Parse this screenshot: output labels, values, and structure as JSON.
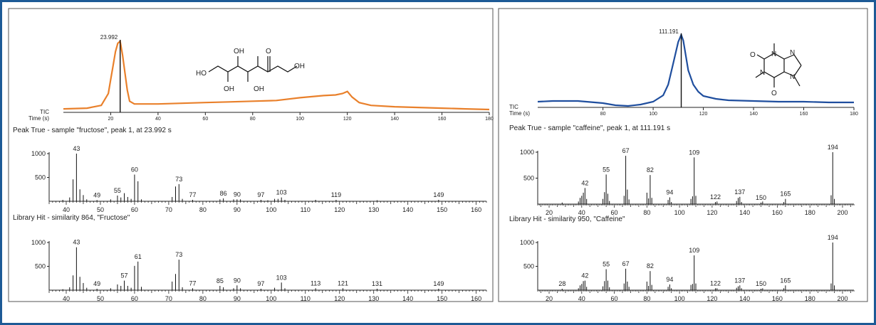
{
  "chart_data": [
    {
      "type": "line",
      "panel": "left-chromatogram",
      "peak_label": "23.992",
      "trace_label": "TIC",
      "xlabel": "Time (s)",
      "xlim": [
        0,
        180
      ],
      "xticks": [
        20,
        40,
        60,
        80,
        100,
        120,
        140,
        160,
        180
      ],
      "peak_x": 23.992,
      "x": [
        0,
        10,
        16,
        19,
        20,
        21,
        22,
        23,
        23.99,
        25,
        26,
        27,
        28,
        30,
        40,
        50,
        60,
        70,
        80,
        90,
        100,
        110,
        115,
        118,
        120,
        122,
        125,
        130,
        140,
        150,
        160,
        170,
        180
      ],
      "y": [
        0.03,
        0.04,
        0.08,
        0.25,
        0.45,
        0.65,
        0.85,
        0.97,
        1.0,
        0.8,
        0.55,
        0.3,
        0.14,
        0.1,
        0.1,
        0.11,
        0.12,
        0.13,
        0.14,
        0.15,
        0.19,
        0.22,
        0.23,
        0.25,
        0.28,
        0.2,
        0.12,
        0.08,
        0.06,
        0.05,
        0.04,
        0.03,
        0.02
      ],
      "color": "#e9802b",
      "structure_name": "fructose",
      "structure_labels": [
        "HO",
        "OH",
        "OH",
        "OH",
        "OH"
      ],
      "structure_o": "O"
    },
    {
      "type": "line",
      "panel": "right-chromatogram",
      "peak_label": "111.191",
      "trace_label": "TIC",
      "xlabel": "Time (s)",
      "xlim": [
        54,
        180
      ],
      "xticks": [
        80,
        100,
        120,
        140,
        160,
        180
      ],
      "peak_x": 111.191,
      "x": [
        54,
        60,
        70,
        80,
        85,
        90,
        95,
        100,
        104,
        106,
        108,
        110,
        111.19,
        112,
        114,
        116,
        118,
        120,
        125,
        130,
        140,
        150,
        160,
        170,
        180
      ],
      "y": [
        0.06,
        0.07,
        0.07,
        0.04,
        0.01,
        0.0,
        0.02,
        0.06,
        0.15,
        0.3,
        0.6,
        0.9,
        1.0,
        0.92,
        0.5,
        0.3,
        0.2,
        0.14,
        0.1,
        0.08,
        0.07,
        0.06,
        0.06,
        0.05,
        0.05
      ],
      "color": "#1f4e9e",
      "structure_name": "caffeine",
      "structure_o": [
        "O",
        "O"
      ],
      "structure_n": [
        "N",
        "N",
        "N",
        "N"
      ]
    },
    {
      "type": "bar",
      "panel": "left-sample-spectrum",
      "title": "Peak True - sample \"fructose\", peak 1, at 23.992 s",
      "xlim": [
        35,
        163
      ],
      "ylim": [
        0,
        1000
      ],
      "yticks": [
        500,
        1000
      ],
      "xticks": [
        40,
        50,
        60,
        70,
        80,
        90,
        100,
        110,
        120,
        130,
        140,
        150,
        160
      ],
      "x": [
        39,
        41,
        42,
        43,
        44,
        45,
        46,
        49,
        53,
        55,
        56,
        57,
        58,
        59,
        60,
        61,
        62,
        71,
        72,
        73,
        74,
        77,
        85,
        86,
        89,
        90,
        91,
        97,
        99,
        101,
        102,
        103,
        104,
        113,
        119,
        131,
        149
      ],
      "y": [
        30,
        80,
        460,
        1000,
        250,
        130,
        40,
        25,
        40,
        120,
        80,
        170,
        90,
        50,
        560,
        420,
        40,
        90,
        310,
        360,
        50,
        30,
        40,
        60,
        40,
        40,
        40,
        30,
        20,
        50,
        50,
        80,
        30,
        30,
        30,
        20,
        30
      ],
      "labels": {
        "43": "43",
        "49": "49",
        "55": "55",
        "60": "60",
        "73": "73",
        "77": "77",
        "86": "86",
        "90": "90",
        "97": "97",
        "103": "103",
        "119": "119",
        "149": "149"
      }
    },
    {
      "type": "bar",
      "panel": "left-library-spectrum",
      "title": "Library Hit - similarity 864, \"Fructose\"",
      "xlim": [
        35,
        163
      ],
      "ylim": [
        0,
        1000
      ],
      "yticks": [
        500,
        1000
      ],
      "xticks": [
        40,
        50,
        60,
        70,
        80,
        90,
        100,
        110,
        120,
        130,
        140,
        150,
        160
      ],
      "x": [
        39,
        41,
        42,
        43,
        44,
        45,
        46,
        49,
        53,
        55,
        56,
        57,
        58,
        59,
        60,
        61,
        62,
        71,
        72,
        73,
        74,
        77,
        85,
        86,
        89,
        90,
        91,
        97,
        101,
        103,
        104,
        113,
        121,
        131,
        149
      ],
      "y": [
        20,
        60,
        310,
        900,
        280,
        150,
        50,
        30,
        40,
        120,
        90,
        200,
        90,
        50,
        510,
        600,
        70,
        180,
        340,
        640,
        60,
        40,
        90,
        60,
        40,
        100,
        40,
        30,
        50,
        160,
        40,
        40,
        40,
        30,
        30
      ],
      "labels": {
        "43": "43",
        "49": "49",
        "57": "57",
        "61": "61",
        "73": "73",
        "77": "77",
        "85": "85",
        "90": "90",
        "97": "97",
        "103": "103",
        "113": "113",
        "121": "121",
        "131": "131",
        "149": "149"
      }
    },
    {
      "type": "bar",
      "panel": "right-sample-spectrum",
      "title": "Peak True - sample \"caffeine\", peak 1, at 111.191 s",
      "xlim": [
        13,
        207
      ],
      "ylim": [
        0,
        1000
      ],
      "yticks": [
        500,
        1000
      ],
      "xticks": [
        20,
        40,
        60,
        80,
        100,
        120,
        140,
        160,
        180,
        200
      ],
      "x": [
        28,
        38,
        39,
        40,
        41,
        42,
        43,
        53,
        54,
        55,
        56,
        57,
        66,
        67,
        68,
        69,
        80,
        81,
        82,
        83,
        93,
        94,
        95,
        107,
        108,
        109,
        110,
        122,
        123,
        135,
        136,
        137,
        138,
        150,
        151,
        164,
        165,
        193,
        194,
        195
      ],
      "y": [
        30,
        50,
        120,
        160,
        220,
        310,
        100,
        100,
        230,
        570,
        200,
        60,
        160,
        930,
        280,
        90,
        220,
        110,
        560,
        120,
        80,
        130,
        40,
        100,
        150,
        900,
        160,
        40,
        50,
        60,
        120,
        140,
        40,
        30,
        50,
        40,
        100,
        170,
        1000,
        100
      ],
      "labels": {
        "42": "42",
        "55": "55",
        "67": "67",
        "82": "82",
        "94": "94",
        "109": "109",
        "122": "122",
        "137": "137",
        "150": "150",
        "165": "165",
        "194": "194"
      }
    },
    {
      "type": "bar",
      "panel": "right-library-spectrum",
      "title": "Library Hit - similarity 950, \"Caffeine\"",
      "xlim": [
        13,
        207
      ],
      "ylim": [
        0,
        1000
      ],
      "yticks": [
        500,
        1000
      ],
      "xticks": [
        20,
        40,
        60,
        80,
        100,
        120,
        140,
        160,
        180,
        200
      ],
      "x": [
        28,
        38,
        39,
        40,
        41,
        42,
        43,
        53,
        54,
        55,
        56,
        57,
        66,
        67,
        68,
        69,
        80,
        81,
        82,
        83,
        93,
        94,
        95,
        107,
        108,
        109,
        110,
        122,
        123,
        135,
        136,
        137,
        138,
        150,
        151,
        164,
        165,
        193,
        194,
        195
      ],
      "y": [
        30,
        40,
        100,
        130,
        190,
        200,
        70,
        80,
        190,
        440,
        200,
        60,
        140,
        450,
        180,
        70,
        180,
        90,
        400,
        110,
        70,
        120,
        40,
        110,
        130,
        730,
        140,
        40,
        40,
        50,
        80,
        100,
        40,
        30,
        40,
        40,
        100,
        140,
        1000,
        100
      ],
      "labels": {
        "28": "28",
        "42": "42",
        "55": "55",
        "67": "67",
        "82": "82",
        "94": "94",
        "109": "109",
        "122": "122",
        "137": "137",
        "150": "150",
        "165": "165",
        "194": "194"
      }
    }
  ]
}
